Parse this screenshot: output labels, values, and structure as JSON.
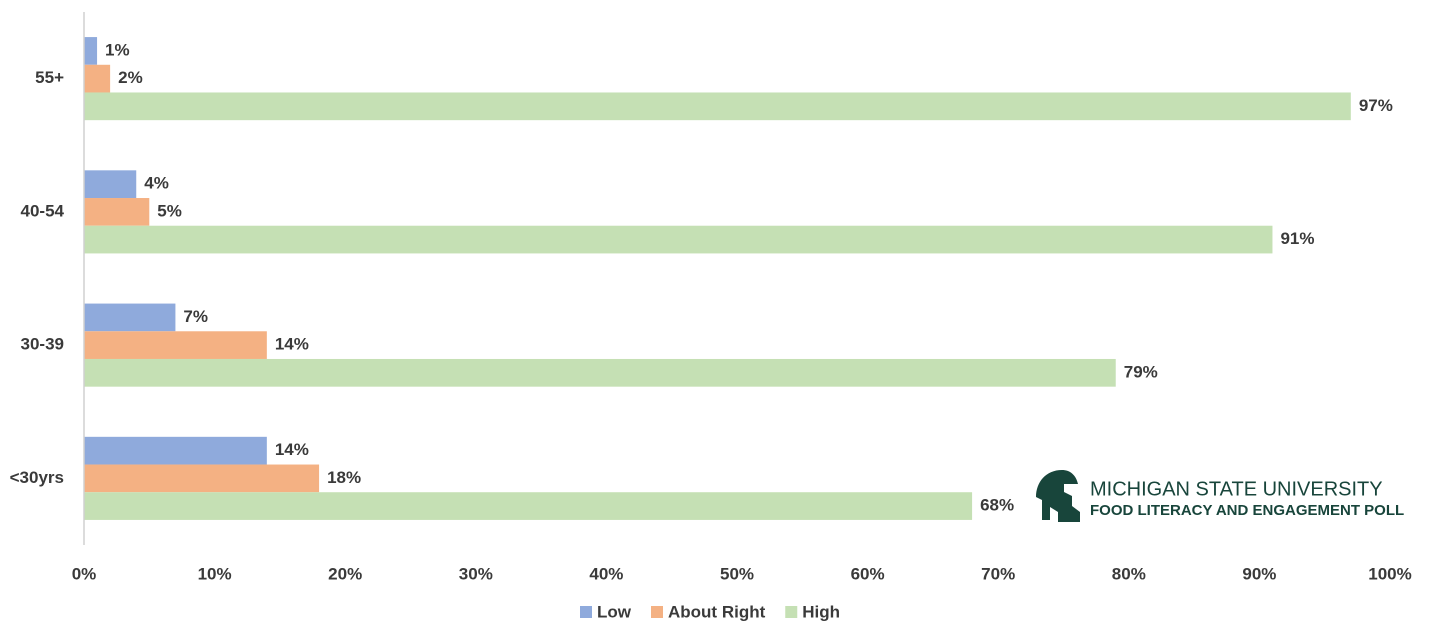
{
  "chart_data": {
    "type": "hbar",
    "categories": [
      "55+",
      "40-54",
      "30-39",
      "<30yrs"
    ],
    "series": [
      {
        "name": "Low",
        "color": "#8faadc",
        "values": [
          1,
          4,
          7,
          14
        ],
        "value_labels": [
          "1%",
          "4%",
          "7%",
          "14%"
        ]
      },
      {
        "name": "About Right",
        "color": "#f4b183",
        "values": [
          2,
          5,
          14,
          18
        ],
        "value_labels": [
          "2%",
          "5%",
          "14%",
          "18%"
        ]
      },
      {
        "name": "High",
        "color": "#c5e0b4",
        "values": [
          97,
          91,
          79,
          68
        ],
        "value_labels": [
          "97%",
          "91%",
          "79%",
          "68%"
        ]
      }
    ],
    "xlim": [
      0,
      100
    ],
    "xticks": [
      {
        "value": 0,
        "label": "0%"
      },
      {
        "value": 10,
        "label": "10%"
      },
      {
        "value": 20,
        "label": "20%"
      },
      {
        "value": 30,
        "label": "30%"
      },
      {
        "value": 40,
        "label": "40%"
      },
      {
        "value": 50,
        "label": "50%"
      },
      {
        "value": 60,
        "label": "60%"
      },
      {
        "value": 70,
        "label": "70%"
      },
      {
        "value": 80,
        "label": "80%"
      },
      {
        "value": 90,
        "label": "90%"
      },
      {
        "value": 100,
        "label": "100%"
      }
    ],
    "grid": false,
    "legend": "bottom"
  },
  "logo": {
    "name": "MICHIGAN STATE UNIVERSITY",
    "tagline": "FOOD LITERACY AND ENGAGEMENT POLL"
  }
}
